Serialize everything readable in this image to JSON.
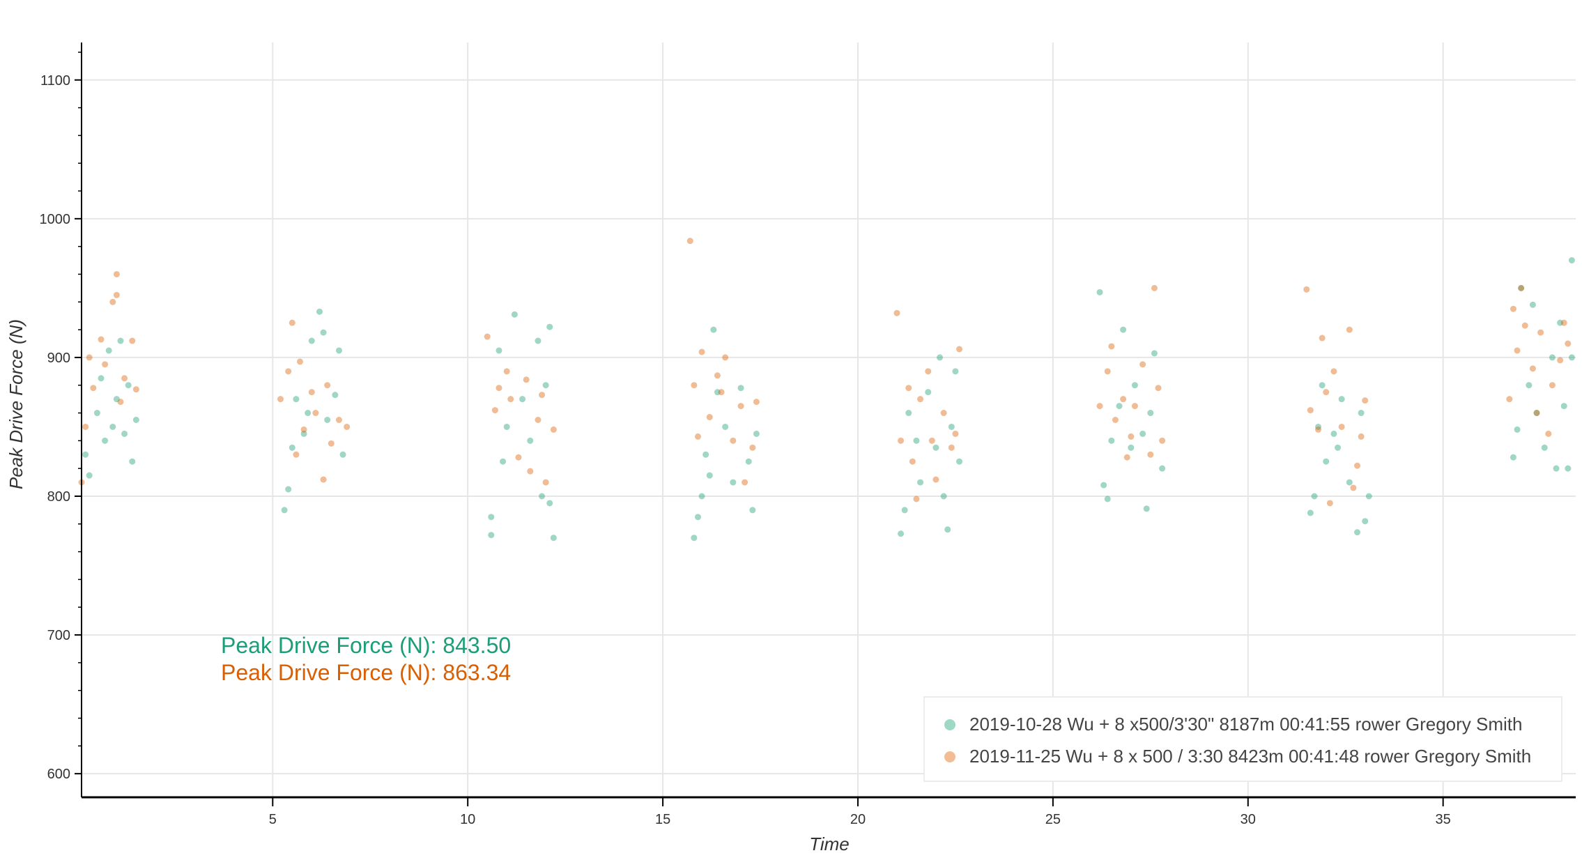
{
  "chart_data": {
    "type": "scatter",
    "title": "",
    "xlabel": "Time",
    "ylabel": "Peak Drive Force (N)",
    "xlim": [
      0.1,
      38.4
    ],
    "ylim": [
      583,
      1127
    ],
    "xticks": [
      5,
      10,
      15,
      20,
      25,
      30,
      35
    ],
    "yticks": [
      600,
      700,
      800,
      900,
      1000,
      1100
    ],
    "grid": true,
    "legend_position": "bottom-right",
    "annotations": [
      {
        "text": "Peak Drive Force (N): 843.50",
        "color": "#1b9e77"
      },
      {
        "text": "Peak Drive Force (N): 863.34",
        "color": "#d95f02"
      }
    ],
    "series": [
      {
        "name": "2019-10-28 Wu + 8 x500/3'30\" 8187m 00:41:55 rower Gregory Smith",
        "color": "#1b9e77",
        "points": [
          [
            0.2,
            830
          ],
          [
            0.3,
            815
          ],
          [
            0.5,
            860
          ],
          [
            0.6,
            885
          ],
          [
            0.8,
            905
          ],
          [
            0.9,
            850
          ],
          [
            1.0,
            870
          ],
          [
            1.1,
            912
          ],
          [
            1.2,
            845
          ],
          [
            1.3,
            880
          ],
          [
            1.4,
            825
          ],
          [
            1.5,
            855
          ],
          [
            0.7,
            840
          ],
          [
            5.3,
            790
          ],
          [
            5.4,
            805
          ],
          [
            5.5,
            835
          ],
          [
            5.6,
            870
          ],
          [
            5.8,
            845
          ],
          [
            6.0,
            912
          ],
          [
            6.2,
            933
          ],
          [
            6.3,
            918
          ],
          [
            6.4,
            855
          ],
          [
            6.6,
            873
          ],
          [
            6.7,
            905
          ],
          [
            6.8,
            830
          ],
          [
            5.9,
            860
          ],
          [
            10.6,
            772
          ],
          [
            10.6,
            785
          ],
          [
            10.8,
            905
          ],
          [
            10.9,
            825
          ],
          [
            11.0,
            850
          ],
          [
            11.2,
            931
          ],
          [
            11.4,
            870
          ],
          [
            11.6,
            840
          ],
          [
            11.8,
            912
          ],
          [
            11.9,
            800
          ],
          [
            12.0,
            880
          ],
          [
            12.1,
            922
          ],
          [
            12.2,
            770
          ],
          [
            12.1,
            795
          ],
          [
            15.8,
            770
          ],
          [
            15.9,
            785
          ],
          [
            16.0,
            800
          ],
          [
            16.1,
            830
          ],
          [
            16.3,
            920
          ],
          [
            16.4,
            875
          ],
          [
            16.6,
            850
          ],
          [
            16.8,
            810
          ],
          [
            17.0,
            878
          ],
          [
            17.2,
            825
          ],
          [
            17.3,
            790
          ],
          [
            17.4,
            845
          ],
          [
            16.2,
            815
          ],
          [
            21.1,
            773
          ],
          [
            21.2,
            790
          ],
          [
            21.3,
            860
          ],
          [
            21.5,
            840
          ],
          [
            21.6,
            810
          ],
          [
            21.8,
            875
          ],
          [
            22.0,
            835
          ],
          [
            22.1,
            900
          ],
          [
            22.3,
            776
          ],
          [
            22.4,
            850
          ],
          [
            22.5,
            890
          ],
          [
            22.6,
            825
          ],
          [
            22.2,
            800
          ],
          [
            26.2,
            947
          ],
          [
            26.3,
            808
          ],
          [
            26.4,
            798
          ],
          [
            26.5,
            840
          ],
          [
            26.7,
            865
          ],
          [
            26.8,
            920
          ],
          [
            27.0,
            835
          ],
          [
            27.1,
            880
          ],
          [
            27.3,
            845
          ],
          [
            27.4,
            791
          ],
          [
            27.5,
            860
          ],
          [
            27.6,
            903
          ],
          [
            27.8,
            820
          ],
          [
            31.6,
            788
          ],
          [
            31.7,
            800
          ],
          [
            31.8,
            850
          ],
          [
            31.9,
            880
          ],
          [
            32.0,
            825
          ],
          [
            32.2,
            845
          ],
          [
            32.4,
            870
          ],
          [
            32.6,
            810
          ],
          [
            32.8,
            774
          ],
          [
            32.9,
            860
          ],
          [
            33.0,
            782
          ],
          [
            33.1,
            800
          ],
          [
            32.3,
            835
          ],
          [
            36.8,
            828
          ],
          [
            36.9,
            848
          ],
          [
            37.0,
            950
          ],
          [
            37.2,
            880
          ],
          [
            37.3,
            938
          ],
          [
            37.4,
            860
          ],
          [
            37.6,
            835
          ],
          [
            37.8,
            900
          ],
          [
            37.9,
            820
          ],
          [
            38.0,
            925
          ],
          [
            38.1,
            865
          ],
          [
            38.2,
            820
          ],
          [
            38.3,
            970
          ],
          [
            38.3,
            900
          ]
        ]
      },
      {
        "name": "2019-11-25 Wu + 8 x 500 / 3:30 8423m 00:41:48 rower Gregory Smith",
        "color": "#d95f02",
        "points": [
          [
            0.1,
            810
          ],
          [
            0.2,
            850
          ],
          [
            0.4,
            878
          ],
          [
            0.6,
            913
          ],
          [
            0.7,
            895
          ],
          [
            0.9,
            940
          ],
          [
            1.0,
            960
          ],
          [
            1.0,
            945
          ],
          [
            1.1,
            868
          ],
          [
            1.2,
            885
          ],
          [
            1.4,
            912
          ],
          [
            1.5,
            877
          ],
          [
            0.3,
            900
          ],
          [
            5.2,
            870
          ],
          [
            5.4,
            890
          ],
          [
            5.5,
            925
          ],
          [
            5.7,
            897
          ],
          [
            5.8,
            848
          ],
          [
            6.0,
            875
          ],
          [
            6.1,
            860
          ],
          [
            6.3,
            812
          ],
          [
            6.4,
            880
          ],
          [
            6.5,
            838
          ],
          [
            6.7,
            855
          ],
          [
            6.9,
            850
          ],
          [
            5.6,
            830
          ],
          [
            10.5,
            915
          ],
          [
            10.7,
            862
          ],
          [
            10.8,
            878
          ],
          [
            11.0,
            890
          ],
          [
            11.1,
            870
          ],
          [
            11.3,
            828
          ],
          [
            11.5,
            884
          ],
          [
            11.6,
            818
          ],
          [
            11.8,
            855
          ],
          [
            11.9,
            873
          ],
          [
            12.0,
            810
          ],
          [
            12.2,
            848
          ],
          [
            15.7,
            984
          ],
          [
            15.8,
            880
          ],
          [
            15.9,
            843
          ],
          [
            16.0,
            904
          ],
          [
            16.2,
            857
          ],
          [
            16.4,
            887
          ],
          [
            16.6,
            900
          ],
          [
            16.8,
            840
          ],
          [
            17.0,
            865
          ],
          [
            17.1,
            810
          ],
          [
            17.3,
            835
          ],
          [
            17.4,
            868
          ],
          [
            16.5,
            875
          ],
          [
            21.0,
            932
          ],
          [
            21.1,
            840
          ],
          [
            21.3,
            878
          ],
          [
            21.4,
            825
          ],
          [
            21.6,
            870
          ],
          [
            21.8,
            890
          ],
          [
            21.9,
            840
          ],
          [
            22.0,
            812
          ],
          [
            22.2,
            860
          ],
          [
            22.4,
            835
          ],
          [
            22.6,
            906
          ],
          [
            21.5,
            798
          ],
          [
            22.5,
            845
          ],
          [
            26.2,
            865
          ],
          [
            26.4,
            890
          ],
          [
            26.5,
            908
          ],
          [
            26.6,
            855
          ],
          [
            26.8,
            870
          ],
          [
            27.0,
            843
          ],
          [
            27.1,
            865
          ],
          [
            27.3,
            895
          ],
          [
            27.5,
            830
          ],
          [
            27.6,
            950
          ],
          [
            27.7,
            878
          ],
          [
            27.8,
            840
          ],
          [
            26.9,
            828
          ],
          [
            31.5,
            949
          ],
          [
            31.6,
            862
          ],
          [
            31.8,
            848
          ],
          [
            31.9,
            914
          ],
          [
            32.0,
            875
          ],
          [
            32.2,
            890
          ],
          [
            32.4,
            850
          ],
          [
            32.6,
            920
          ],
          [
            32.7,
            806
          ],
          [
            32.8,
            822
          ],
          [
            32.9,
            843
          ],
          [
            33.0,
            869
          ],
          [
            32.1,
            795
          ],
          [
            36.7,
            870
          ],
          [
            36.8,
            935
          ],
          [
            36.9,
            905
          ],
          [
            37.0,
            950
          ],
          [
            37.1,
            923
          ],
          [
            37.3,
            892
          ],
          [
            37.5,
            918
          ],
          [
            37.7,
            845
          ],
          [
            37.8,
            880
          ],
          [
            38.0,
            898
          ],
          [
            38.1,
            925
          ],
          [
            38.2,
            910
          ],
          [
            37.4,
            860
          ]
        ]
      }
    ]
  }
}
